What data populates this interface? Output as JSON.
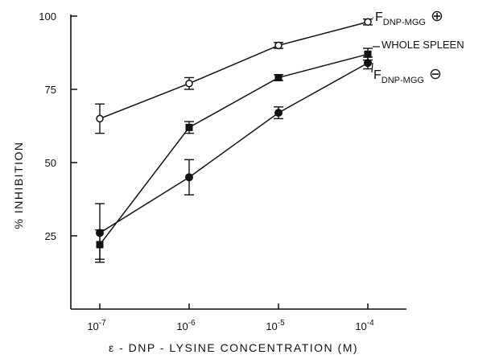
{
  "chart_data": {
    "type": "line",
    "x_scale": "log",
    "x": [
      1e-07,
      1e-06,
      1e-05,
      0.0001
    ],
    "x_tick_labels": [
      {
        "base": "10",
        "exp": "-7"
      },
      {
        "base": "10",
        "exp": "-6"
      },
      {
        "base": "10",
        "exp": "-5"
      },
      {
        "base": "10",
        "exp": "-4"
      }
    ],
    "y_ticks": [
      25,
      50,
      75,
      100
    ],
    "ylim": [
      0,
      100
    ],
    "xlabel": "ε - DNP - LYSINE   CONCENTRATION   (M)",
    "ylabel": "%  INHIBITION",
    "grid": false,
    "series": [
      {
        "name_parts": [
          "F",
          "DNP-MGG",
          "⊕"
        ],
        "marker": "open-circle",
        "values": [
          65,
          77,
          90,
          98
        ],
        "errors": [
          5,
          2,
          1,
          1
        ]
      },
      {
        "name_parts": [
          "WHOLE  SPLEEN",
          "",
          ""
        ],
        "marker": "filled-square",
        "values": [
          22,
          62,
          79,
          87
        ],
        "errors": [
          5,
          2,
          1,
          2
        ]
      },
      {
        "name_parts": [
          "F",
          "DNP-MGG",
          "⊖"
        ],
        "marker": "filled-circle",
        "values": [
          26,
          45,
          67,
          84
        ],
        "errors": [
          10,
          6,
          2,
          2
        ]
      }
    ]
  }
}
